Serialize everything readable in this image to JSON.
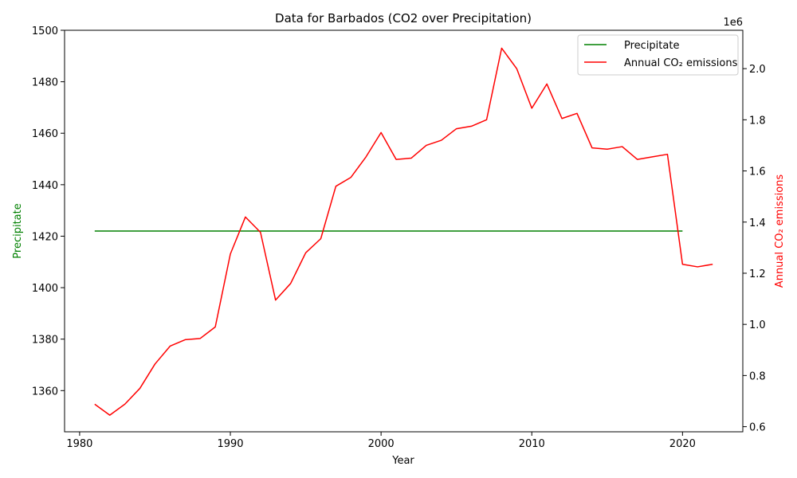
{
  "chart_data": {
    "type": "line",
    "title": "Data for Barbados (CO2 over Precipitation)",
    "xlabel": "Year",
    "ylabel_left": "Precipitate",
    "ylabel_right": "Annual CO₂ emissions",
    "right_axis_offset_label": "1e6",
    "xlim": [
      1979,
      2024
    ],
    "ylim_left": [
      1344,
      1500
    ],
    "ylim_right": [
      0.58,
      2.15
    ],
    "x_ticks": [
      1980,
      1990,
      2000,
      2010,
      2020
    ],
    "y_left_ticks": [
      1360,
      1380,
      1400,
      1420,
      1440,
      1460,
      1480,
      1500
    ],
    "y_right_ticks": [
      0.6,
      0.8,
      1.0,
      1.2,
      1.4,
      1.6,
      1.8,
      2.0
    ],
    "y_right_tick_labels": [
      "0.6",
      "0.8",
      "1.0",
      "1.2",
      "1.4",
      "1.6",
      "1.8",
      "2.0"
    ],
    "legend_position": "upper right",
    "grid": false,
    "series": [
      {
        "name": "Precipitate",
        "axis": "left",
        "color": "#008000",
        "x": [
          1981,
          1982,
          1983,
          1984,
          1985,
          1986,
          1987,
          1988,
          1989,
          1990,
          1991,
          1992,
          1993,
          1994,
          1995,
          1996,
          1997,
          1998,
          1999,
          2000,
          2001,
          2002,
          2003,
          2004,
          2005,
          2006,
          2007,
          2008,
          2009,
          2010,
          2011,
          2012,
          2013,
          2014,
          2015,
          2016,
          2017,
          2018,
          2019,
          2020
        ],
        "values": [
          1422,
          1422,
          1422,
          1422,
          1422,
          1422,
          1422,
          1422,
          1422,
          1422,
          1422,
          1422,
          1422,
          1422,
          1422,
          1422,
          1422,
          1422,
          1422,
          1422,
          1422,
          1422,
          1422,
          1422,
          1422,
          1422,
          1422,
          1422,
          1422,
          1422,
          1422,
          1422,
          1422,
          1422,
          1422,
          1422,
          1422,
          1422,
          1422,
          1422
        ]
      },
      {
        "name": "Annual CO₂ emissions",
        "axis": "right",
        "color": "#ff0000",
        "x": [
          1981,
          1982,
          1983,
          1984,
          1985,
          1986,
          1987,
          1988,
          1989,
          1990,
          1991,
          1992,
          1993,
          1994,
          1995,
          1996,
          1997,
          1998,
          1999,
          2000,
          2001,
          2002,
          2003,
          2004,
          2005,
          2006,
          2007,
          2008,
          2009,
          2010,
          2011,
          2012,
          2013,
          2014,
          2015,
          2016,
          2017,
          2018,
          2019,
          2020,
          2021,
          2022
        ],
        "values": [
          0.688,
          0.645,
          0.688,
          0.75,
          0.845,
          0.915,
          0.94,
          0.945,
          0.99,
          1.275,
          1.42,
          1.36,
          1.095,
          1.16,
          1.28,
          1.335,
          1.54,
          1.575,
          1.655,
          1.75,
          1.645,
          1.65,
          1.7,
          1.72,
          1.765,
          1.775,
          1.8,
          2.08,
          2.0,
          1.845,
          1.94,
          1.805,
          1.825,
          1.69,
          1.685,
          1.695,
          1.645,
          1.655,
          1.665,
          1.235,
          1.225,
          1.235
        ]
      }
    ]
  }
}
